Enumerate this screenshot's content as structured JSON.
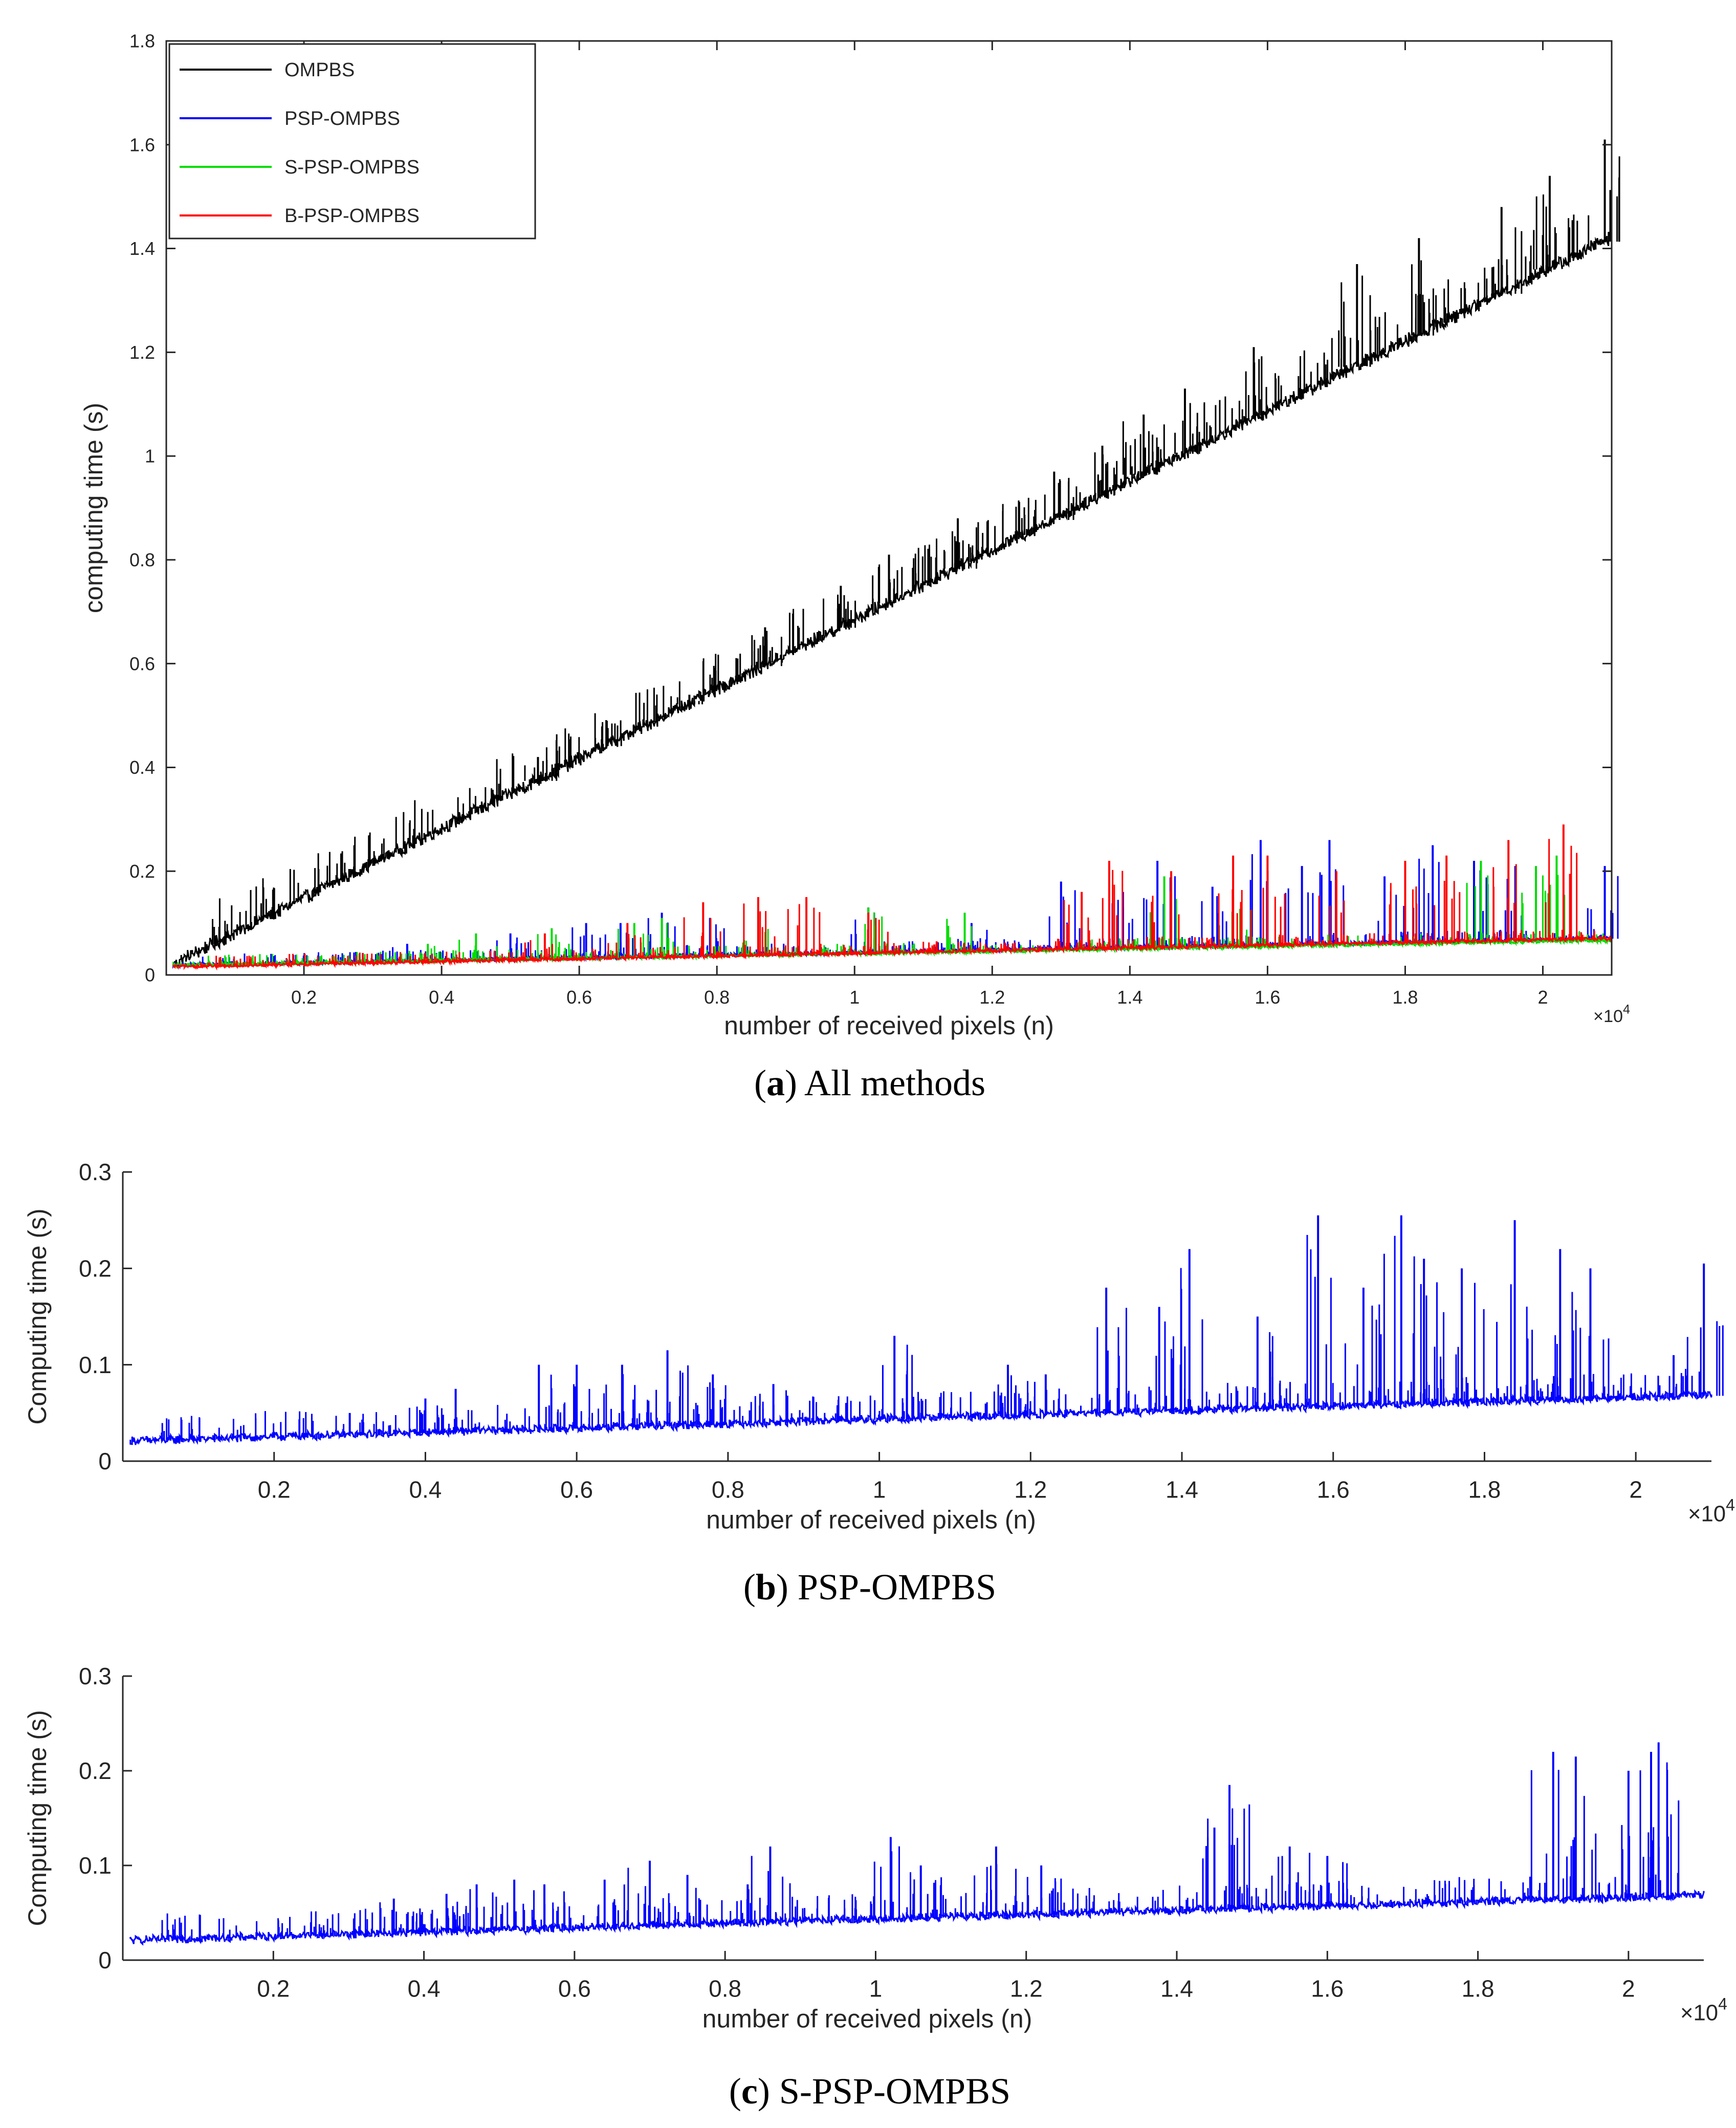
{
  "chart_data": [
    {
      "type": "line",
      "id": "a",
      "xlabel": "number of received pixels (n)",
      "ylabel": "computing time (s)",
      "x_multiplier": "×10",
      "x_multiplier_exp": "4",
      "xlim": [
        0,
        2.1
      ],
      "ylim": [
        0,
        1.8
      ],
      "xticks": [
        "0.2",
        "0.4",
        "0.6",
        "0.8",
        "1",
        "1.2",
        "1.4",
        "1.6",
        "1.8",
        "2"
      ],
      "yticks": [
        "0",
        "0.2",
        "0.4",
        "0.6",
        "0.8",
        "1",
        "1.2",
        "1.4",
        "1.6",
        "1.8"
      ],
      "legend_position": "top-left",
      "series": [
        {
          "name": "OMPBS",
          "color": "#000000",
          "start": 0.012,
          "end": 1.42,
          "noise": 0.012,
          "spikes": [
            [
              0.54,
              0.42
            ],
            [
              0.64,
              0.49
            ],
            [
              0.76,
              0.54
            ],
            [
              0.87,
              0.67
            ],
            [
              0.98,
              0.75
            ],
            [
              1.05,
              0.81
            ],
            [
              1.15,
              0.88
            ],
            [
              1.29,
              0.97
            ],
            [
              1.36,
              1.02
            ],
            [
              1.42,
              1.08
            ],
            [
              1.48,
              1.13
            ],
            [
              1.58,
              1.21
            ],
            [
              1.73,
              1.37
            ],
            [
              1.82,
              1.42
            ],
            [
              1.94,
              1.48
            ],
            [
              2.01,
              1.54
            ],
            [
              2.09,
              1.61
            ]
          ]
        },
        {
          "name": "PSP-OMPBS",
          "color": "#0000ff",
          "start": 0.018,
          "end": 0.07,
          "noise": 0.003,
          "spikes": [
            [
              0.35,
              0.06
            ],
            [
              0.5,
              0.08
            ],
            [
              0.61,
              0.1
            ],
            [
              0.66,
              0.1
            ],
            [
              0.72,
              0.12
            ],
            [
              0.79,
              0.11
            ],
            [
              1.02,
              0.13
            ],
            [
              1.17,
              0.1
            ],
            [
              1.3,
              0.18
            ],
            [
              1.39,
              0.16
            ],
            [
              1.44,
              0.22
            ],
            [
              1.52,
              0.17
            ],
            [
              1.59,
              0.26
            ],
            [
              1.65,
              0.21
            ],
            [
              1.69,
              0.26
            ],
            [
              1.77,
              0.19
            ],
            [
              1.84,
              0.25
            ],
            [
              1.9,
              0.22
            ],
            [
              1.96,
              0.21
            ],
            [
              2.09,
              0.21
            ]
          ]
        },
        {
          "name": "S-PSP-OMPBS",
          "color": "#00dd00",
          "start": 0.018,
          "end": 0.066,
          "noise": 0.003,
          "spikes": [
            [
              0.38,
              0.06
            ],
            [
              0.45,
              0.08
            ],
            [
              0.56,
              0.09
            ],
            [
              0.68,
              0.1
            ],
            [
              0.72,
              0.11
            ],
            [
              0.86,
              0.12
            ],
            [
              1.02,
              0.13
            ],
            [
              1.16,
              0.12
            ],
            [
              1.45,
              0.19
            ],
            [
              1.55,
              0.15
            ],
            [
              1.91,
              0.22
            ],
            [
              1.99,
              0.21
            ],
            [
              2.02,
              0.23
            ]
          ]
        },
        {
          "name": "B-PSP-OMPBS",
          "color": "#ff0000",
          "start": 0.015,
          "end": 0.07,
          "noise": 0.003,
          "spikes": [
            [
              0.55,
              0.08
            ],
            [
              0.67,
              0.1
            ],
            [
              0.78,
              0.14
            ],
            [
              0.86,
              0.15
            ],
            [
              0.93,
              0.15
            ],
            [
              1.02,
              0.12
            ],
            [
              1.33,
              0.16
            ],
            [
              1.37,
              0.22
            ],
            [
              1.46,
              0.2
            ],
            [
              1.55,
              0.23
            ],
            [
              1.6,
              0.23
            ],
            [
              1.7,
              0.2
            ],
            [
              1.8,
              0.22
            ],
            [
              1.86,
              0.23
            ],
            [
              1.95,
              0.26
            ],
            [
              2.03,
              0.29
            ]
          ]
        }
      ]
    },
    {
      "type": "line",
      "id": "b",
      "xlabel": "number of received pixels (n)",
      "ylabel": "Computing time (s)",
      "x_multiplier": "×10",
      "x_multiplier_exp": "4",
      "xlim": [
        0,
        2.1
      ],
      "ylim": [
        0,
        0.3
      ],
      "xticks": [
        "0.2",
        "0.4",
        "0.6",
        "0.8",
        "1",
        "1.2",
        "1.4",
        "1.6",
        "1.8",
        "2"
      ],
      "yticks": [
        "0",
        "0.1",
        "0.2",
        "0.3"
      ],
      "series": [
        {
          "name": "PSP-OMPBS",
          "color": "#0000ff",
          "start": 0.02,
          "end": 0.068,
          "noise": 0.004,
          "spikes": [
            [
              0.3,
              0.05
            ],
            [
              0.4,
              0.065
            ],
            [
              0.44,
              0.075
            ],
            [
              0.55,
              0.1
            ],
            [
              0.6,
              0.1
            ],
            [
              0.66,
              0.1
            ],
            [
              0.72,
              0.115
            ],
            [
              0.78,
              0.09
            ],
            [
              0.86,
              0.08
            ],
            [
              1.02,
              0.13
            ],
            [
              1.17,
              0.1
            ],
            [
              1.22,
              0.09
            ],
            [
              1.3,
              0.18
            ],
            [
              1.37,
              0.16
            ],
            [
              1.41,
              0.22
            ],
            [
              1.5,
              0.15
            ],
            [
              1.58,
              0.255
            ],
            [
              1.64,
              0.18
            ],
            [
              1.69,
              0.255
            ],
            [
              1.72,
              0.21
            ],
            [
              1.77,
              0.2
            ],
            [
              1.84,
              0.25
            ],
            [
              1.9,
              0.22
            ],
            [
              1.94,
              0.2
            ],
            [
              2.05,
              0.11
            ],
            [
              2.09,
              0.205
            ]
          ]
        }
      ]
    },
    {
      "type": "line",
      "id": "c",
      "xlabel": "number of received pixels (n)",
      "ylabel": "Computing time (s)",
      "x_multiplier": "×10",
      "x_multiplier_exp": "4",
      "xlim": [
        0,
        2.1
      ],
      "ylim": [
        0,
        0.3
      ],
      "xticks": [
        "0.2",
        "0.4",
        "0.6",
        "0.8",
        "1",
        "1.2",
        "1.4",
        "1.6",
        "1.8",
        "2"
      ],
      "yticks": [
        "0",
        "0.1",
        "0.2",
        "0.3"
      ],
      "series": [
        {
          "name": "S-PSP-OMPBS",
          "color": "#0000ff",
          "start": 0.02,
          "end": 0.068,
          "noise": 0.004,
          "spikes": [
            [
              0.25,
              0.04
            ],
            [
              0.36,
              0.065
            ],
            [
              0.43,
              0.07
            ],
            [
              0.47,
              0.08
            ],
            [
              0.52,
              0.085
            ],
            [
              0.56,
              0.08
            ],
            [
              0.64,
              0.085
            ],
            [
              0.7,
              0.105
            ],
            [
              0.75,
              0.09
            ],
            [
              0.83,
              0.08
            ],
            [
              0.86,
              0.12
            ],
            [
              1.02,
              0.13
            ],
            [
              1.06,
              0.1
            ],
            [
              1.16,
              0.12
            ],
            [
              1.22,
              0.1
            ],
            [
              1.45,
              0.14
            ],
            [
              1.47,
              0.185
            ],
            [
              1.55,
              0.12
            ],
            [
              1.6,
              0.11
            ],
            [
              1.9,
              0.22
            ],
            [
              1.93,
              0.215
            ],
            [
              2.0,
              0.2
            ],
            [
              2.03,
              0.22
            ],
            [
              2.04,
              0.23
            ]
          ]
        }
      ]
    }
  ],
  "captions": [
    {
      "letter": "a",
      "text": " All methods"
    },
    {
      "letter": "b",
      "text": " PSP-OMPBS"
    },
    {
      "letter": "c",
      "text": " S-PSP-OMPBS"
    }
  ],
  "caption_parens": {
    "open": "(",
    "close": ")"
  }
}
